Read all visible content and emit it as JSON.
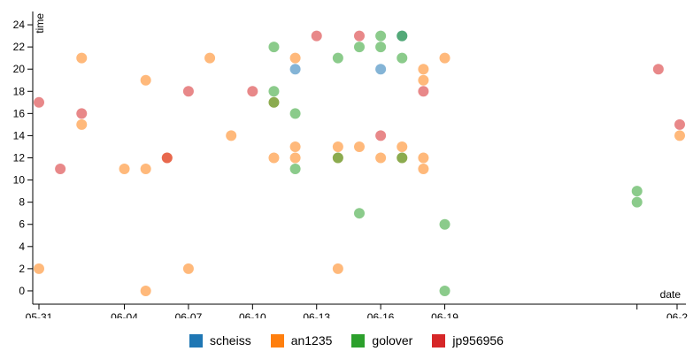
{
  "chart_data": {
    "type": "scatter",
    "xlabel": "date",
    "ylabel": "time",
    "x_ticks": [
      "05-31",
      "06-04",
      "06-07",
      "06-10",
      "06-13",
      "06-16",
      "06-19",
      "06-2"
    ],
    "y_ticks": [
      "0",
      "2",
      "4",
      "6",
      "8",
      "10",
      "12",
      "14",
      "16",
      "18",
      "20",
      "22",
      "24"
    ],
    "ylim": [
      -1.2,
      25.2
    ],
    "xlim": [
      "05-31",
      "06-30"
    ],
    "legend_position": "bottom",
    "series": [
      {
        "name": "scheiss",
        "color": "#1f77b4",
        "points": [
          [
            "06-12",
            20
          ],
          [
            "06-16",
            20
          ],
          [
            "06-17",
            23
          ]
        ]
      },
      {
        "name": "an1235",
        "color": "#ff7f0e",
        "points": [
          [
            "05-31",
            2
          ],
          [
            "06-02",
            21
          ],
          [
            "06-02",
            15
          ],
          [
            "06-04",
            11
          ],
          [
            "06-05",
            19
          ],
          [
            "06-05",
            11
          ],
          [
            "06-05",
            0
          ],
          [
            "06-06",
            12
          ],
          [
            "06-07",
            2
          ],
          [
            "06-08",
            21
          ],
          [
            "06-09",
            14
          ],
          [
            "06-11",
            12
          ],
          [
            "06-11",
            17
          ],
          [
            "06-12",
            21
          ],
          [
            "06-12",
            13
          ],
          [
            "06-12",
            12
          ],
          [
            "06-14",
            13
          ],
          [
            "06-14",
            12
          ],
          [
            "06-14",
            2
          ],
          [
            "06-15",
            13
          ],
          [
            "06-16",
            12
          ],
          [
            "06-17",
            13
          ],
          [
            "06-17",
            12
          ],
          [
            "06-18",
            20
          ],
          [
            "06-18",
            19
          ],
          [
            "06-18",
            12
          ],
          [
            "06-18",
            11
          ],
          [
            "06-19",
            21
          ],
          [
            "06-30",
            14
          ]
        ]
      },
      {
        "name": "golover",
        "color": "#2ca02c",
        "points": [
          [
            "06-11",
            22
          ],
          [
            "06-11",
            18
          ],
          [
            "06-11",
            17
          ],
          [
            "06-12",
            16
          ],
          [
            "06-12",
            11
          ],
          [
            "06-14",
            21
          ],
          [
            "06-14",
            12
          ],
          [
            "06-15",
            22
          ],
          [
            "06-15",
            7
          ],
          [
            "06-16",
            23
          ],
          [
            "06-16",
            22
          ],
          [
            "06-17",
            21
          ],
          [
            "06-17",
            12
          ],
          [
            "06-17",
            23
          ],
          [
            "06-19",
            6
          ],
          [
            "06-19",
            0
          ],
          [
            "06-28",
            9
          ],
          [
            "06-28",
            8
          ]
        ]
      },
      {
        "name": "jp956956",
        "color": "#d62728",
        "points": [
          [
            "05-31",
            17
          ],
          [
            "06-01",
            11
          ],
          [
            "06-02",
            16
          ],
          [
            "06-06",
            12
          ],
          [
            "06-07",
            18
          ],
          [
            "06-10",
            18
          ],
          [
            "06-13",
            23
          ],
          [
            "06-15",
            23
          ],
          [
            "06-16",
            14
          ],
          [
            "06-18",
            18
          ],
          [
            "06-29",
            20
          ],
          [
            "06-30",
            15
          ]
        ]
      }
    ]
  }
}
